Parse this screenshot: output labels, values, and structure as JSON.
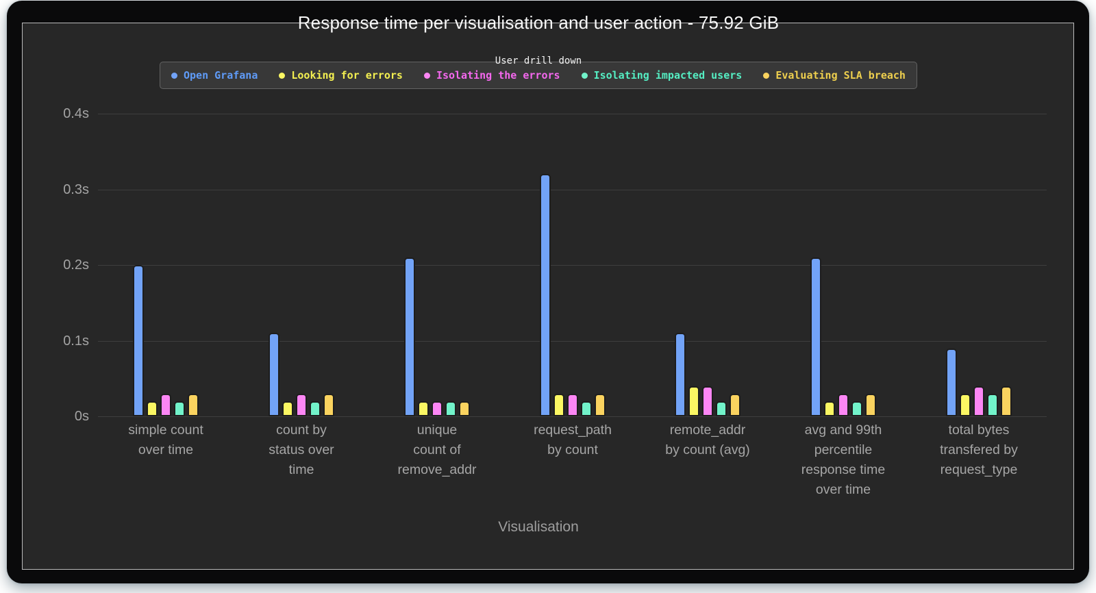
{
  "title": "Response time per visualisation and user action - 75.92 GiB",
  "legend": {
    "title": "User drill down",
    "items": [
      {
        "label": "Open Grafana",
        "color": "#72a3f7",
        "text_color": "#5f9bf7"
      },
      {
        "label": "Looking for errors",
        "color": "#fbf763",
        "text_color": "#f3ef51"
      },
      {
        "label": "Isolating the errors",
        "color": "#fc86f4",
        "text_color": "#f468ee"
      },
      {
        "label": "Isolating impacted users",
        "color": "#72f3ca",
        "text_color": "#55eec3"
      },
      {
        "label": "Evaluating SLA breach",
        "color": "#fad35f",
        "text_color": "#eecf4e"
      }
    ]
  },
  "chart_data": {
    "type": "bar",
    "title": "Response time per visualisation and user action - 75.92 GiB",
    "legend_title": "User drill down",
    "legend_position": "top",
    "grid": true,
    "xlabel": "Visualisation",
    "ylabel": "",
    "ylim": [
      0,
      0.4
    ],
    "yticks": [
      "0s",
      "0.1s",
      "0.2s",
      "0.3s",
      "0.4s"
    ],
    "ytick_values": [
      0,
      0.1,
      0.2,
      0.3,
      0.4
    ],
    "categories": [
      "simple count over time",
      "count by status over time",
      "unique count of remove_addr",
      "request_path by count",
      "remote_addr by count (avg)",
      "avg and 99th percentile response time over time",
      "total bytes transfered by request_type"
    ],
    "category_lines": [
      [
        "simple count",
        "over time"
      ],
      [
        "count by",
        "status over",
        "time"
      ],
      [
        "unique",
        "count of",
        "remove_addr"
      ],
      [
        "request_path",
        "by count"
      ],
      [
        "remote_addr",
        "by count (avg)"
      ],
      [
        "avg and 99th",
        "percentile",
        "response time",
        "over time"
      ],
      [
        "total bytes",
        "transfered by",
        "request_type"
      ]
    ],
    "unit": "s",
    "series": [
      {
        "name": "Open Grafana",
        "color": "#72a3f7",
        "values": [
          0.2,
          0.11,
          0.21,
          0.32,
          0.11,
          0.21,
          0.09
        ]
      },
      {
        "name": "Looking for errors",
        "color": "#fbf763",
        "values": [
          0.02,
          0.02,
          0.02,
          0.03,
          0.04,
          0.02,
          0.03
        ]
      },
      {
        "name": "Isolating the errors",
        "color": "#fc86f4",
        "values": [
          0.03,
          0.03,
          0.02,
          0.03,
          0.04,
          0.03,
          0.04
        ]
      },
      {
        "name": "Isolating impacted users",
        "color": "#72f3ca",
        "values": [
          0.02,
          0.02,
          0.02,
          0.02,
          0.02,
          0.02,
          0.03
        ]
      },
      {
        "name": "Evaluating SLA breach",
        "color": "#fad35f",
        "values": [
          0.03,
          0.03,
          0.02,
          0.03,
          0.03,
          0.03,
          0.04
        ]
      }
    ]
  }
}
